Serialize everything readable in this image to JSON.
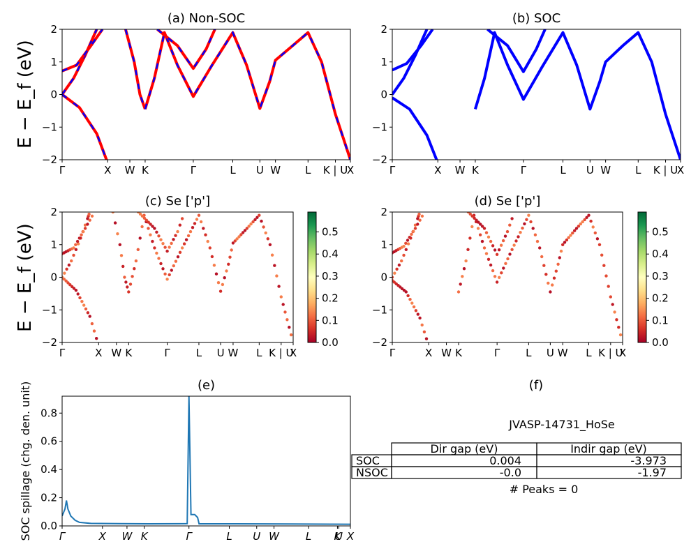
{
  "ylabel_band": "E − E_f (eV)",
  "colorbar_ticks": [
    "0.0",
    "0.1",
    "0.2",
    "0.3",
    "0.4",
    "0.5"
  ],
  "colorbar_range": [
    0,
    0.59
  ],
  "chart_data": [
    {
      "id": "a",
      "type": "line",
      "title": "(a) Non-SOC",
      "ylim": [
        -2,
        2
      ],
      "yticks": [
        "−2",
        "−1",
        "0",
        "1",
        "2"
      ],
      "x_ticks": [
        "Γ",
        "X",
        "W",
        "K",
        "Γ",
        "L",
        "U",
        "W",
        "L",
        "K | U",
        "X"
      ],
      "x_tick_positions": [
        0,
        0.158,
        0.235,
        0.288,
        0.455,
        0.592,
        0.686,
        0.74,
        0.853,
        0.948,
        1.0
      ],
      "series": [
        {
          "values": [
            [
              0,
              0
            ],
            [
              0.04,
              0.5
            ],
            [
              0.08,
              1.2
            ],
            [
              0.11,
              1.8
            ],
            [
              0.12,
              2
            ]
          ],
          "color": "#ff0000"
        },
        {
          "values": [
            [
              0,
              0
            ],
            [
              0.06,
              -0.4
            ],
            [
              0.12,
              -1.2
            ],
            [
              0.158,
              -2.1
            ]
          ],
          "color": "#ff0000"
        },
        {
          "values": [
            [
              0,
              0.72
            ],
            [
              0.05,
              0.9
            ],
            [
              0.1,
              1.5
            ],
            [
              0.14,
              2
            ]
          ],
          "color": "#ff0000"
        },
        {
          "values": [
            [
              0.22,
              2
            ],
            [
              0.25,
              1
            ],
            [
              0.27,
              0
            ],
            [
              0.288,
              -0.45
            ]
          ],
          "color": "#ff0000"
        },
        {
          "values": [
            [
              0.288,
              -0.45
            ],
            [
              0.32,
              0.5
            ],
            [
              0.355,
              1.9
            ],
            [
              0.4,
              0.9
            ],
            [
              0.455,
              -0.06
            ],
            [
              0.52,
              0.9
            ],
            [
              0.592,
              1.9
            ],
            [
              0.64,
              0.9
            ],
            [
              0.686,
              -0.43
            ],
            [
              0.72,
              0.4
            ],
            [
              0.74,
              1.05
            ],
            [
              0.8,
              1.5
            ],
            [
              0.853,
              1.9
            ],
            [
              0.9,
              1
            ],
            [
              0.948,
              -0.6
            ],
            [
              1.0,
              -2
            ]
          ],
          "color": "#ff0000"
        },
        {
          "values": [
            [
              0.33,
              2
            ],
            [
              0.4,
              1.5
            ],
            [
              0.455,
              0.8
            ],
            [
              0.5,
              1.4
            ],
            [
              0.53,
              2
            ]
          ],
          "color": "#ff0000"
        }
      ]
    },
    {
      "id": "b",
      "type": "line",
      "title": "(b) SOC",
      "ylim": [
        -2,
        2
      ],
      "yticks": [
        "−2",
        "−1",
        "0",
        "1",
        "2"
      ],
      "x_ticks": [
        "Γ",
        "X",
        "W",
        "K",
        "Γ",
        "L",
        "U",
        "W",
        "L",
        "K | U",
        "X"
      ],
      "x_tick_positions": [
        0,
        0.158,
        0.235,
        0.288,
        0.455,
        0.592,
        0.686,
        0.74,
        0.853,
        0.948,
        1.0
      ],
      "series": [
        {
          "values": [
            [
              0,
              0
            ],
            [
              0.04,
              0.5
            ],
            [
              0.08,
              1.2
            ],
            [
              0.11,
              1.8
            ],
            [
              0.12,
              2
            ]
          ],
          "color": "#0000ff"
        },
        {
          "values": [
            [
              0,
              -0.1
            ],
            [
              0.06,
              -0.45
            ],
            [
              0.12,
              -1.25
            ],
            [
              0.158,
              -2.1
            ]
          ],
          "color": "#0000ff"
        },
        {
          "values": [
            [
              0,
              0.75
            ],
            [
              0.05,
              0.95
            ],
            [
              0.1,
              1.5
            ],
            [
              0.14,
              2
            ]
          ],
          "color": "#0000ff"
        },
        {
          "values": [
            [
              0.288,
              -0.45
            ],
            [
              0.32,
              0.5
            ],
            [
              0.355,
              1.9
            ],
            [
              0.4,
              0.9
            ],
            [
              0.455,
              -0.15
            ],
            [
              0.52,
              0.85
            ],
            [
              0.592,
              1.9
            ],
            [
              0.64,
              0.9
            ],
            [
              0.686,
              -0.45
            ],
            [
              0.72,
              0.4
            ],
            [
              0.74,
              1.0
            ],
            [
              0.8,
              1.5
            ],
            [
              0.853,
              1.9
            ],
            [
              0.9,
              1
            ],
            [
              0.948,
              -0.6
            ],
            [
              1.0,
              -2
            ]
          ],
          "color": "#0000ff"
        },
        {
          "values": [
            [
              0.33,
              2
            ],
            [
              0.4,
              1.5
            ],
            [
              0.455,
              0.7
            ],
            [
              0.5,
              1.4
            ],
            [
              0.53,
              2
            ]
          ],
          "color": "#0000ff"
        }
      ]
    },
    {
      "id": "c",
      "type": "scatter",
      "title": "(c)  Se ['p']",
      "ylim": [
        -2,
        2
      ],
      "yticks": [
        "−2",
        "−1",
        "0",
        "1",
        "2"
      ],
      "x_ticks": [
        "Γ",
        "X",
        "W",
        "K",
        "Γ",
        "L",
        "U",
        "W",
        "L",
        "K | U",
        "X"
      ],
      "x_tick_positions": [
        0,
        0.158,
        0.235,
        0.288,
        0.455,
        0.592,
        0.686,
        0.74,
        0.853,
        0.948,
        1.0
      ]
    },
    {
      "id": "d",
      "type": "scatter",
      "title": "(d) Se ['p']",
      "ylim": [
        -2,
        2
      ],
      "yticks": [
        "−2",
        "−1",
        "0",
        "1",
        "2"
      ],
      "x_ticks": [
        "Γ",
        "X",
        "W",
        "K",
        "Γ",
        "L",
        "U",
        "W",
        "L",
        "K | U",
        "X"
      ],
      "x_tick_positions": [
        0,
        0.158,
        0.235,
        0.288,
        0.455,
        0.592,
        0.686,
        0.74,
        0.853,
        0.948,
        1.0
      ]
    },
    {
      "id": "e",
      "type": "line",
      "title": "(e)",
      "ylabel": "SOC spillage (chg. den. unit)",
      "ylim": [
        0,
        0.92
      ],
      "yticks": [
        "0.0",
        "0.2",
        "0.4",
        "0.6",
        "0.8"
      ],
      "ytick_values": [
        0,
        0.2,
        0.4,
        0.6,
        0.8
      ],
      "x_ticks": [
        "Γ",
        "X",
        "W",
        "K",
        "Γ",
        "L",
        "U",
        "W",
        "L",
        "K",
        "U",
        "X"
      ],
      "x_tick_positions": [
        0,
        0.14,
        0.225,
        0.285,
        0.44,
        0.58,
        0.675,
        0.735,
        0.855,
        0.955,
        0.96,
        1.0
      ],
      "series": [
        {
          "values": [
            [
              0,
              0.07
            ],
            [
              0.01,
              0.12
            ],
            [
              0.015,
              0.18
            ],
            [
              0.02,
              0.12
            ],
            [
              0.03,
              0.07
            ],
            [
              0.045,
              0.04
            ],
            [
              0.06,
              0.025
            ],
            [
              0.1,
              0.018
            ],
            [
              0.2,
              0.016
            ],
            [
              0.3,
              0.015
            ],
            [
              0.434,
              0.016
            ],
            [
              0.44,
              0.92
            ],
            [
              0.447,
              0.08
            ],
            [
              0.46,
              0.08
            ],
            [
              0.47,
              0.06
            ],
            [
              0.475,
              0.015
            ],
            [
              0.6,
              0.015
            ],
            [
              0.8,
              0.014
            ],
            [
              1.0,
              0.012
            ]
          ],
          "color": "#1f77b4"
        }
      ]
    }
  ],
  "panel_f": {
    "title": "(f)",
    "name": "JVASP-14731_HoSe",
    "columns": [
      "Dir gap (eV)",
      "Indir gap (eV)"
    ],
    "rows": [
      {
        "label": "SOC",
        "dir": "0.004",
        "indir": "-3.973"
      },
      {
        "label": "NSOC",
        "dir": "-0.0",
        "indir": "-1.97"
      }
    ],
    "peaks": "# Peaks = 0"
  }
}
